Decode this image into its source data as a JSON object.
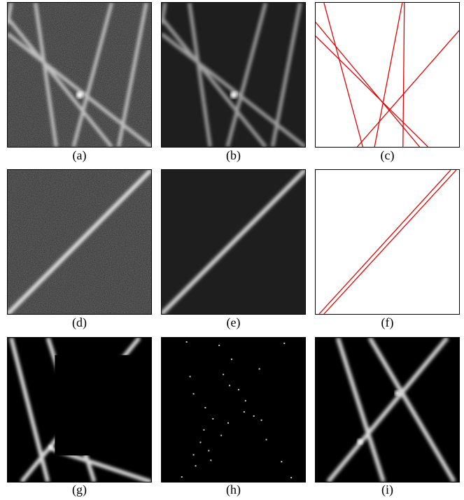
{
  "figure": {
    "panels": [
      {
        "id": "a",
        "caption": "(a)"
      },
      {
        "id": "b",
        "caption": "(b)"
      },
      {
        "id": "c",
        "caption": "(c)"
      },
      {
        "id": "d",
        "caption": "(d)"
      },
      {
        "id": "e",
        "caption": "(e)"
      },
      {
        "id": "f",
        "caption": "(f)"
      },
      {
        "id": "g",
        "caption": "(g)"
      },
      {
        "id": "h",
        "caption": "(h)"
      },
      {
        "id": "i",
        "caption": "(i)"
      }
    ]
  },
  "colors": {
    "noisy_background": "#111111",
    "smooth_background": "#1e1e1e",
    "black_background": "#000000",
    "line_white": "#e8e8e8",
    "detected_line_red": "#e00000",
    "canvas_white": "#ffffff"
  }
}
